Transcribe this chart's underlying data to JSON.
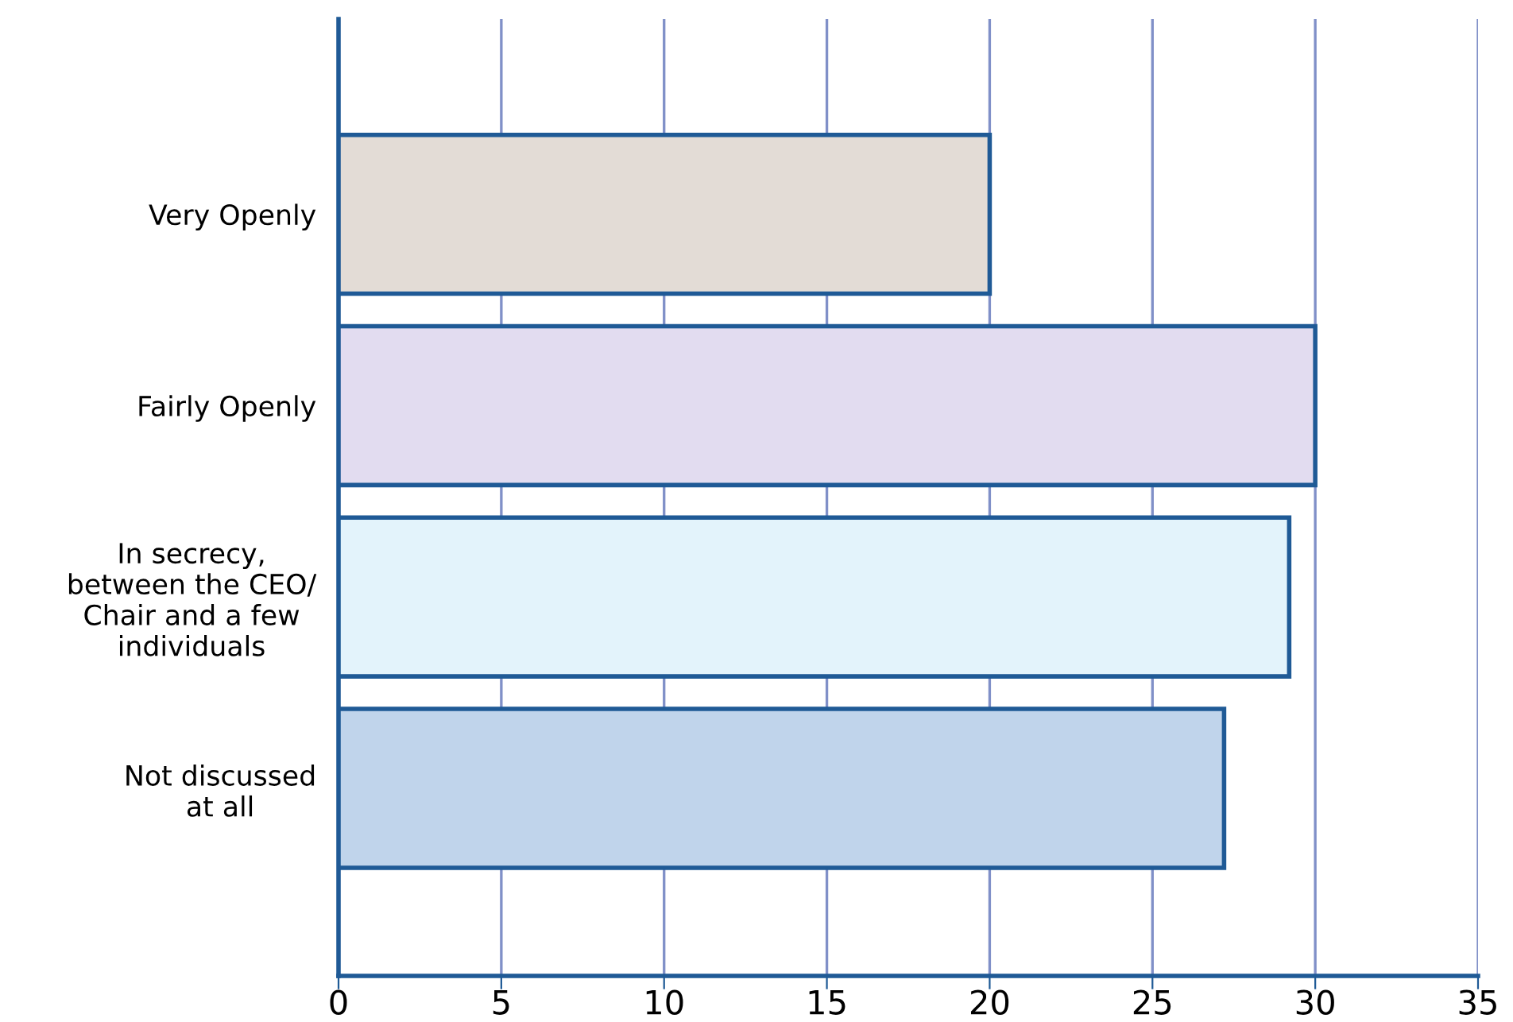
{
  "chart_data": {
    "type": "bar",
    "orientation": "horizontal",
    "categories": [
      "Very Openly",
      "Fairly Openly",
      "In secrecy,\nbetween the CEO/\nChair and a few\nindividuals",
      "Not discussed\nat all"
    ],
    "values": [
      20,
      30,
      29.2,
      27.2
    ],
    "colors": [
      "#e3dcd6",
      "#e2dcf0",
      "#e3f3fb",
      "#c0d4eb"
    ],
    "xlim": [
      0,
      35
    ],
    "xticks": [
      0,
      5,
      10,
      15,
      20,
      25,
      30,
      35
    ],
    "grid": "x"
  }
}
